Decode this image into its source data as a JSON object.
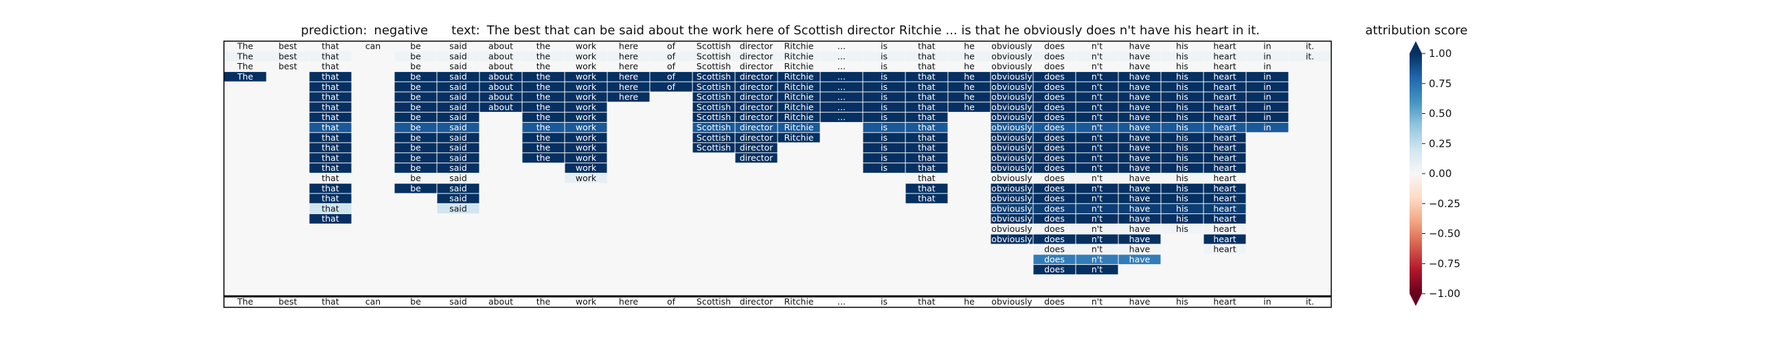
{
  "header": {
    "prediction_label": "prediction:",
    "prediction_value": "negative",
    "text_label": "text:",
    "text_value": "The best that can be said about the work here of Scottish director Ritchie ... is that he obviously does n't have his heart in it."
  },
  "chart_data": {
    "type": "heatmap",
    "tokens": [
      "The",
      "best",
      "that",
      "can",
      "be",
      "said",
      "about",
      "the",
      "work",
      "here",
      "of",
      "Scottish",
      "director",
      "Ritchie",
      "...",
      "is",
      "that",
      "he",
      "obviously",
      "does",
      "n't",
      "have",
      "his",
      "heart",
      "in",
      "it."
    ],
    "rows": [
      {
        "present": [
          0,
          1,
          2,
          3,
          4,
          5,
          6,
          7,
          8,
          9,
          10,
          11,
          12,
          13,
          14,
          15,
          16,
          17,
          18,
          19,
          20,
          21,
          22,
          23,
          24,
          25
        ],
        "scores": {}
      },
      {
        "present": [
          0,
          1,
          2,
          4,
          5,
          6,
          7,
          8,
          9,
          10,
          11,
          12,
          13,
          14,
          15,
          16,
          17,
          18,
          19,
          20,
          21,
          22,
          23,
          24,
          25
        ],
        "scores": {
          "0": 0.05,
          "1": 0.05,
          "2": 0.05,
          "4": 0.05,
          "5": 0.05,
          "6": 0.05,
          "7": 0.05,
          "8": 0.05,
          "9": 0.05,
          "10": 0.05,
          "11": 0.05,
          "12": 0.05,
          "13": 0.05,
          "14": 0.05,
          "15": 0.05,
          "16": 0.05,
          "17": 0.05,
          "18": 0.05,
          "19": 0.05,
          "20": 0.05,
          "21": 0.05,
          "22": 0.05,
          "23": 0.05,
          "24": 0.05,
          "25": 0.05
        }
      },
      {
        "present": [
          0,
          1,
          2,
          4,
          5,
          6,
          7,
          8,
          9,
          10,
          11,
          12,
          13,
          14,
          15,
          16,
          17,
          18,
          19,
          20,
          21,
          22,
          23,
          24
        ],
        "scores": {}
      },
      {
        "present": [
          0,
          2,
          4,
          5,
          6,
          7,
          8,
          9,
          10,
          11,
          12,
          13,
          14,
          15,
          16,
          17,
          18,
          19,
          20,
          21,
          22,
          23,
          24
        ],
        "scores": {
          "0": 1,
          "2": 1,
          "4": 1,
          "5": 1,
          "6": 1,
          "7": 1,
          "8": 1,
          "9": 1,
          "10": 1,
          "11": 1,
          "12": 1,
          "13": 1,
          "14": 1,
          "15": 1,
          "16": 1,
          "17": 1,
          "18": 1,
          "19": 1,
          "20": 1,
          "21": 1,
          "22": 1,
          "23": 1,
          "24": 1
        }
      },
      {
        "present": [
          2,
          4,
          5,
          6,
          7,
          8,
          9,
          10,
          11,
          12,
          13,
          14,
          15,
          16,
          17,
          18,
          19,
          20,
          21,
          22,
          23,
          24
        ],
        "scores": {
          "2": 1,
          "4": 1,
          "5": 1,
          "6": 1,
          "7": 1,
          "8": 1,
          "9": 1,
          "10": 1,
          "11": 1,
          "12": 1,
          "13": 1,
          "14": 1,
          "15": 1,
          "16": 1,
          "17": 1,
          "18": 1,
          "19": 1,
          "20": 1,
          "21": 1,
          "22": 1,
          "23": 1,
          "24": 1
        }
      },
      {
        "present": [
          2,
          4,
          5,
          6,
          7,
          8,
          9,
          11,
          12,
          13,
          14,
          15,
          16,
          17,
          18,
          19,
          20,
          21,
          22,
          23,
          24
        ],
        "scores": {
          "2": 1,
          "4": 1,
          "5": 1,
          "6": 1,
          "7": 1,
          "8": 1,
          "9": 1,
          "11": 1,
          "12": 1,
          "13": 1,
          "14": 1,
          "15": 1,
          "16": 1,
          "17": 1,
          "18": 1,
          "19": 1,
          "20": 1,
          "21": 1,
          "22": 1,
          "23": 1,
          "24": 1
        }
      },
      {
        "present": [
          2,
          4,
          5,
          6,
          7,
          8,
          11,
          12,
          13,
          14,
          15,
          16,
          17,
          18,
          19,
          20,
          21,
          22,
          23,
          24
        ],
        "scores": {
          "2": 1,
          "4": 1,
          "5": 1,
          "6": 1,
          "7": 1,
          "8": 1,
          "11": 1,
          "12": 1,
          "13": 1,
          "14": 1,
          "15": 1,
          "16": 1,
          "17": 1,
          "18": 1,
          "19": 1,
          "20": 1,
          "21": 1,
          "22": 1,
          "23": 1,
          "24": 1
        }
      },
      {
        "present": [
          2,
          4,
          5,
          7,
          8,
          11,
          12,
          13,
          14,
          15,
          16,
          18,
          19,
          20,
          21,
          22,
          23,
          24
        ],
        "scores": {
          "2": 1,
          "4": 1,
          "5": 1,
          "7": 1,
          "8": 1,
          "11": 1,
          "12": 1,
          "13": 1,
          "14": 1,
          "15": 1,
          "16": 1,
          "18": 1,
          "19": 1,
          "20": 1,
          "21": 1,
          "22": 1,
          "23": 1,
          "24": 1
        }
      },
      {
        "present": [
          2,
          4,
          5,
          7,
          8,
          11,
          12,
          13,
          15,
          16,
          18,
          19,
          20,
          21,
          22,
          23,
          24
        ],
        "scores": {
          "2": 0.85,
          "4": 0.85,
          "5": 0.85,
          "7": 0.85,
          "8": 0.85,
          "11": 0.85,
          "12": 0.85,
          "13": 0.85,
          "15": 0.85,
          "16": 0.85,
          "18": 0.85,
          "19": 0.85,
          "20": 0.85,
          "21": 0.85,
          "22": 0.85,
          "23": 0.85,
          "24": 0.85
        }
      },
      {
        "present": [
          2,
          4,
          5,
          7,
          8,
          11,
          12,
          13,
          15,
          16,
          18,
          19,
          20,
          21,
          22,
          23
        ],
        "scores": {
          "2": 1,
          "4": 1,
          "5": 1,
          "7": 1,
          "8": 1,
          "11": 1,
          "12": 1,
          "13": 1,
          "15": 1,
          "16": 1,
          "18": 1,
          "19": 1,
          "20": 1,
          "21": 1,
          "22": 1,
          "23": 1
        }
      },
      {
        "present": [
          2,
          4,
          5,
          7,
          8,
          11,
          12,
          15,
          16,
          18,
          19,
          20,
          21,
          22,
          23
        ],
        "scores": {
          "2": 1,
          "4": 1,
          "5": 1,
          "7": 1,
          "8": 1,
          "11": 1,
          "12": 1,
          "15": 1,
          "16": 1,
          "18": 1,
          "19": 1,
          "20": 1,
          "21": 1,
          "22": 1,
          "23": 1
        }
      },
      {
        "present": [
          2,
          4,
          5,
          7,
          8,
          12,
          15,
          16,
          18,
          19,
          20,
          21,
          22,
          23
        ],
        "scores": {
          "2": 1,
          "4": 1,
          "5": 1,
          "7": 1,
          "8": 1,
          "12": 1,
          "15": 1,
          "16": 1,
          "18": 1,
          "19": 1,
          "20": 1,
          "21": 1,
          "22": 1,
          "23": 1
        }
      },
      {
        "present": [
          2,
          4,
          5,
          8,
          15,
          16,
          18,
          19,
          20,
          21,
          22,
          23
        ],
        "scores": {
          "2": 1,
          "4": 1,
          "5": 1,
          "8": 1,
          "15": 1,
          "16": 1,
          "18": 1,
          "19": 1,
          "20": 1,
          "21": 1,
          "22": 1,
          "23": 1
        }
      },
      {
        "present": [
          2,
          4,
          5,
          8,
          16,
          18,
          19,
          20,
          21,
          22,
          23
        ],
        "scores": {
          "2": 0.02,
          "4": 0.02,
          "5": 0.02,
          "8": 0.1,
          "16": 0.02,
          "18": 0.02,
          "19": 0.02,
          "20": 0.02,
          "21": 0.02,
          "22": 0.02,
          "23": 0.02
        }
      },
      {
        "present": [
          2,
          4,
          5,
          16,
          18,
          19,
          20,
          21,
          22,
          23
        ],
        "scores": {
          "2": 1,
          "4": 1,
          "5": 1,
          "16": 1,
          "18": 1,
          "19": 1,
          "20": 1,
          "21": 1,
          "22": 1,
          "23": 1
        }
      },
      {
        "present": [
          2,
          5,
          16,
          18,
          19,
          20,
          21,
          22,
          23
        ],
        "scores": {
          "2": 1,
          "5": 1,
          "16": 1,
          "18": 1,
          "19": 1,
          "20": 1,
          "21": 1,
          "22": 1,
          "23": 1
        }
      },
      {
        "present": [
          2,
          5,
          18,
          19,
          20,
          21,
          22,
          23
        ],
        "scores": {
          "2": 0.2,
          "5": 0.2,
          "18": 0.95,
          "19": 0.95,
          "20": 0.95,
          "21": 0.95,
          "22": 0.95,
          "23": 0.95
        }
      },
      {
        "present": [
          2,
          18,
          19,
          20,
          21,
          22,
          23
        ],
        "scores": {
          "2": 1,
          "18": 1,
          "19": 1,
          "20": 1,
          "21": 1,
          "22": 1,
          "23": 1
        }
      },
      {
        "present": [
          18,
          19,
          20,
          21,
          22,
          23
        ],
        "scores": {
          "18": 0.03,
          "19": 0.03,
          "20": 0.03,
          "21": 0.03,
          "22": 0.03,
          "23": 0.03
        }
      },
      {
        "present": [
          18,
          19,
          20,
          21,
          23
        ],
        "scores": {
          "18": 1,
          "19": 1,
          "20": 1,
          "21": 1,
          "23": 1
        }
      },
      {
        "present": [
          19,
          20,
          21,
          23
        ],
        "scores": {
          "19": 0.03,
          "20": 0.03,
          "21": 0.03,
          "23": 0.03
        }
      },
      {
        "present": [
          19,
          20,
          21
        ],
        "scores": {
          "19": 0.7,
          "20": 0.7,
          "21": 0.7
        }
      },
      {
        "present": [
          19,
          20
        ],
        "scores": {
          "19": 1,
          "20": 1
        }
      }
    ],
    "bottom_tokens": [
      "The",
      "best",
      "that",
      "can",
      "be",
      "said",
      "about",
      "the",
      "work",
      "here",
      "of",
      "Scottish",
      "director",
      "Ritchie",
      "...",
      "is",
      "that",
      "he",
      "obviously",
      "does",
      "n't",
      "have",
      "his",
      "heart",
      "in",
      "it."
    ],
    "colorbar": {
      "title": "attribution score",
      "range": [
        -1.0,
        1.0
      ],
      "ticks": [
        "1.00",
        "0.75",
        "0.50",
        "0.25",
        "0.00",
        "−0.25",
        "−0.50",
        "−0.75",
        "−1.00"
      ],
      "colormap": "RdBu",
      "colors": [
        "#67001f",
        "#b2182b",
        "#d6604d",
        "#f4a582",
        "#fddbc7",
        "#f7f7f7",
        "#d1e5f0",
        "#92c5de",
        "#4393c3",
        "#2166ac",
        "#053061"
      ]
    }
  }
}
